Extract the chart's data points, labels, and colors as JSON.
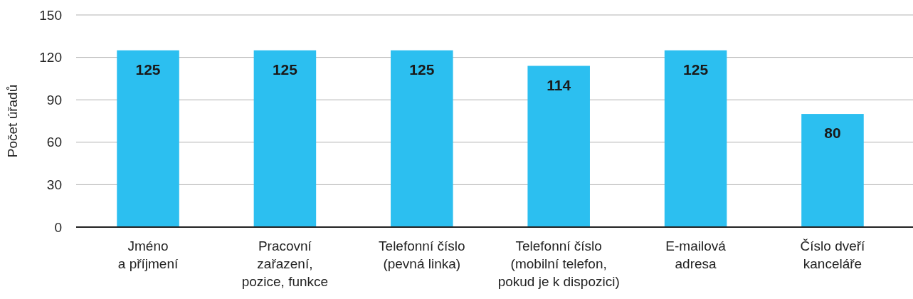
{
  "chart_data": {
    "type": "bar",
    "ylabel": "Počet úřadů",
    "categories": [
      "Jméno\na příjmení",
      "Pracovní\nzařazení,\npozice, funkce",
      "Telefonní číslo\n(pevná linka)",
      "Telefonní číslo\n(mobilní telefon,\npokud je k dispozici)",
      "E-mailová\nadresa",
      "Číslo dveří\nkanceláře"
    ],
    "values": [
      125,
      125,
      125,
      114,
      125,
      80
    ],
    "color": "#2cbff0",
    "ylim": [
      0,
      150
    ],
    "yticks": [
      0,
      30,
      60,
      90,
      120,
      150
    ],
    "grid": "y",
    "data_labels": true
  }
}
